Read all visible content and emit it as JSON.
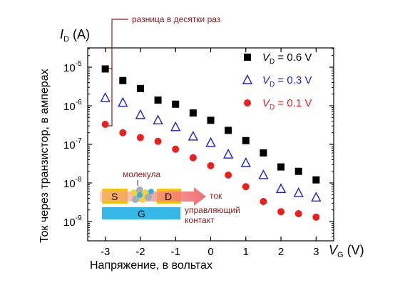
{
  "chart_data": {
    "type": "scatter",
    "x": [
      -3,
      -2.5,
      -2,
      -1.5,
      -1,
      -0.5,
      0,
      0.5,
      1,
      1.5,
      2,
      2.5,
      3
    ],
    "series": [
      {
        "name": "V_D = 0.6 V",
        "legend_var": "V",
        "legend_sub": "D",
        "legend_val": " = 0.6 V",
        "marker": "square",
        "color": "#000000",
        "values": [
          9e-06,
          4.5e-06,
          2.8e-06,
          1.4e-06,
          1.1e-06,
          6.5e-07,
          4.2e-07,
          2.3e-07,
          1.25e-07,
          6e-08,
          2.6e-08,
          2e-08,
          1.2e-08
        ]
      },
      {
        "name": "V_D = 0.3 V",
        "legend_var": "V",
        "legend_sub": "D",
        "legend_val": " = 0.3 V",
        "marker": "triangle-open",
        "color": "#1a22c8",
        "values": [
          1.6e-06,
          1.2e-06,
          5.8e-07,
          4.2e-07,
          2.8e-07,
          1.6e-07,
          1.1e-07,
          5.5e-08,
          3.3e-08,
          1.6e-08,
          7e-09,
          5.5e-09,
          4.2e-09
        ]
      },
      {
        "name": "V_D = 0.1 V",
        "legend_var": "V",
        "legend_sub": "D",
        "legend_val": " = 0.1 V",
        "marker": "circle",
        "color": "#e8201e",
        "values": [
          3.3e-07,
          2e-07,
          1.5e-07,
          1.2e-07,
          7.5e-08,
          4.5e-08,
          2.8e-08,
          1.6e-08,
          8e-09,
          3.3e-09,
          1.8e-09,
          1.6e-09,
          1.3e-09
        ]
      }
    ],
    "xlim": [
      -3.5,
      3.5
    ],
    "ylim_exp": [
      -9.5,
      -4.5
    ],
    "ylog": true,
    "xticks": [
      "-3",
      "-2",
      "-1",
      "0",
      "1",
      "2",
      "3"
    ],
    "yticks": [
      {
        "base": "10",
        "exp": "-5"
      },
      {
        "base": "10",
        "exp": "-6"
      },
      {
        "base": "10",
        "exp": "-7"
      },
      {
        "base": "10",
        "exp": "-8"
      },
      {
        "base": "10",
        "exp": "-9"
      }
    ],
    "xlabel": {
      "var": "V",
      "sub": "G",
      "unit": " (V)"
    },
    "ylabel": {
      "var": "I",
      "sub": "D",
      "unit": " (A)"
    },
    "xlabel_ru": "Напряжение, в вольтах",
    "ylabel_ru": "Ток через транзистор, в амперах",
    "annotation": "разница в десятки раз",
    "inset": {
      "source": "S",
      "drain": "D",
      "gate": "G",
      "molecule_label": "молекула",
      "current_label": "ток",
      "gate_label_line1": "управляющий",
      "gate_label_line2": "контакт"
    },
    "legend_position": "top-right",
    "grid": false,
    "colors": {
      "annotation": "#8a1a1a",
      "electrode": "#f6c40f",
      "gate": "#35b8e6",
      "arrow": "#f08080"
    }
  }
}
